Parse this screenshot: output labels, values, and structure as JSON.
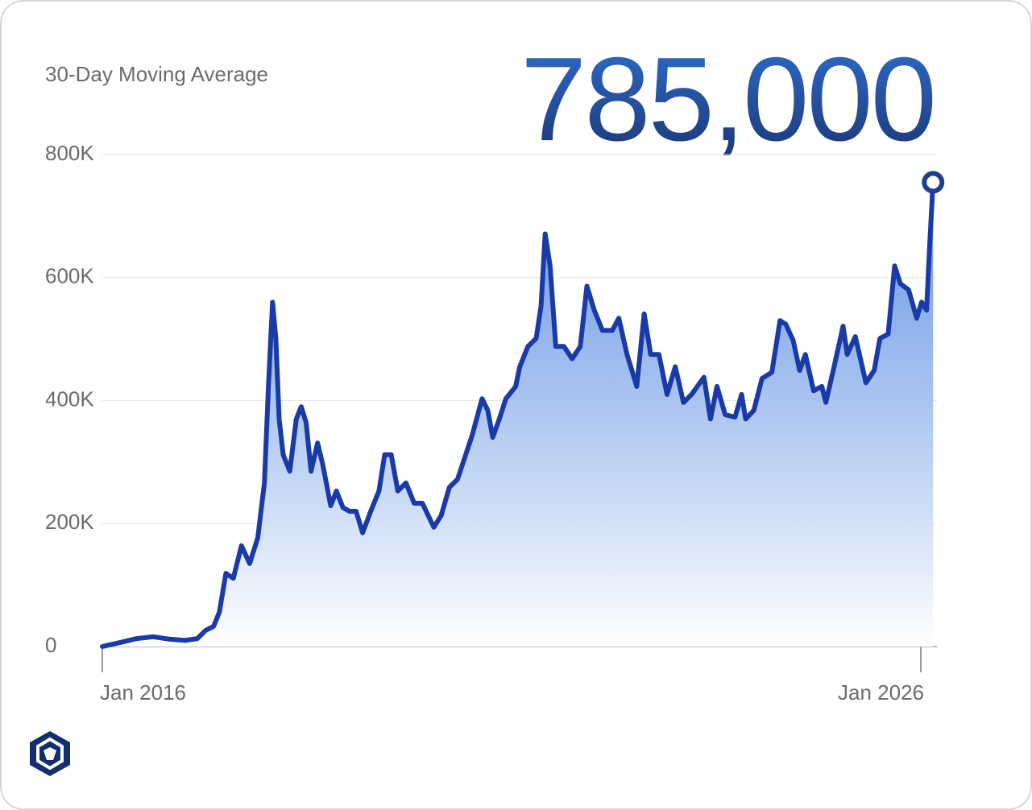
{
  "chart_data": {
    "type": "area-line",
    "title": "30-Day Moving Average",
    "annotation": "785,000",
    "color": "#1a3aa8",
    "x": [
      2016.0,
      2016.23,
      2016.42,
      2016.62,
      2016.82,
      2017.01,
      2017.16,
      2017.26,
      2017.36,
      2017.43,
      2017.51,
      2017.6,
      2017.7,
      2017.8,
      2017.9,
      2017.98,
      2018.03,
      2018.08,
      2018.12,
      2018.16,
      2018.21,
      2018.29,
      2018.37,
      2018.43,
      2018.49,
      2018.55,
      2018.63,
      2018.69,
      2018.79,
      2018.86,
      2018.94,
      2019.02,
      2019.1,
      2019.18,
      2019.28,
      2019.38,
      2019.45,
      2019.53,
      2019.61,
      2019.71,
      2019.81,
      2019.91,
      2020.05,
      2020.14,
      2020.24,
      2020.34,
      2020.44,
      2020.52,
      2020.64,
      2020.71,
      2020.77,
      2020.85,
      2020.93,
      2021.05,
      2021.1,
      2021.2,
      2021.3,
      2021.36,
      2021.41,
      2021.47,
      2021.54,
      2021.64,
      2021.74,
      2021.84,
      2021.92,
      2022.01,
      2022.11,
      2022.23,
      2022.31,
      2022.41,
      2022.53,
      2022.62,
      2022.7,
      2022.8,
      2022.9,
      2023.0,
      2023.1,
      2023.2,
      2023.27,
      2023.35,
      2023.43,
      2023.51,
      2023.61,
      2023.73,
      2023.81,
      2023.86,
      2023.96,
      2024.06,
      2024.18,
      2024.28,
      2024.35,
      2024.44,
      2024.52,
      2024.59,
      2024.69,
      2024.79,
      2024.84,
      2024.93,
      2025.05,
      2025.1,
      2025.2,
      2025.33,
      2025.43,
      2025.5,
      2025.6,
      2025.68,
      2025.75,
      2025.85,
      2025.95,
      2026.01,
      2026.07,
      2026.11,
      2026.15
    ],
    "values": [
      0,
      7000,
      13000,
      16000,
      12000,
      10000,
      13000,
      26000,
      33000,
      56000,
      119000,
      111000,
      164000,
      135000,
      177000,
      266000,
      423000,
      560000,
      501000,
      370000,
      312000,
      285000,
      370000,
      390000,
      364000,
      285000,
      331000,
      298000,
      229000,
      253000,
      226000,
      220000,
      220000,
      185000,
      220000,
      253000,
      312000,
      312000,
      253000,
      266000,
      233000,
      233000,
      194000,
      213000,
      259000,
      272000,
      312000,
      344000,
      403000,
      384000,
      340000,
      370000,
      403000,
      423000,
      455000,
      488000,
      501000,
      554000,
      671000,
      619000,
      488000,
      488000,
      468000,
      488000,
      586000,
      547000,
      514000,
      514000,
      534000,
      475000,
      423000,
      541000,
      475000,
      475000,
      410000,
      455000,
      397000,
      410000,
      423000,
      438000,
      370000,
      423000,
      377000,
      373000,
      410000,
      370000,
      384000,
      436000,
      446000,
      530000,
      524000,
      498000,
      449000,
      475000,
      416000,
      423000,
      397000,
      449000,
      521000,
      475000,
      504000,
      429000,
      449000,
      501000,
      508000,
      619000,
      590000,
      580000,
      534000,
      560000,
      547000,
      658000,
      755000
    ],
    "xlim": [
      2016,
      2026.2
    ],
    "xticks": [
      {
        "value": 2016,
        "label": "Jan 2016"
      },
      {
        "value": 2026,
        "label": "Jan 2026"
      }
    ],
    "ylim": [
      0,
      800000
    ],
    "yticks": [
      0,
      {
        "value": 200000,
        "label": "200K"
      },
      {
        "value": 400000,
        "label": "400K"
      },
      {
        "value": 600000,
        "label": "600K"
      },
      {
        "value": 800000,
        "label": "800K"
      }
    ],
    "grid": true
  }
}
